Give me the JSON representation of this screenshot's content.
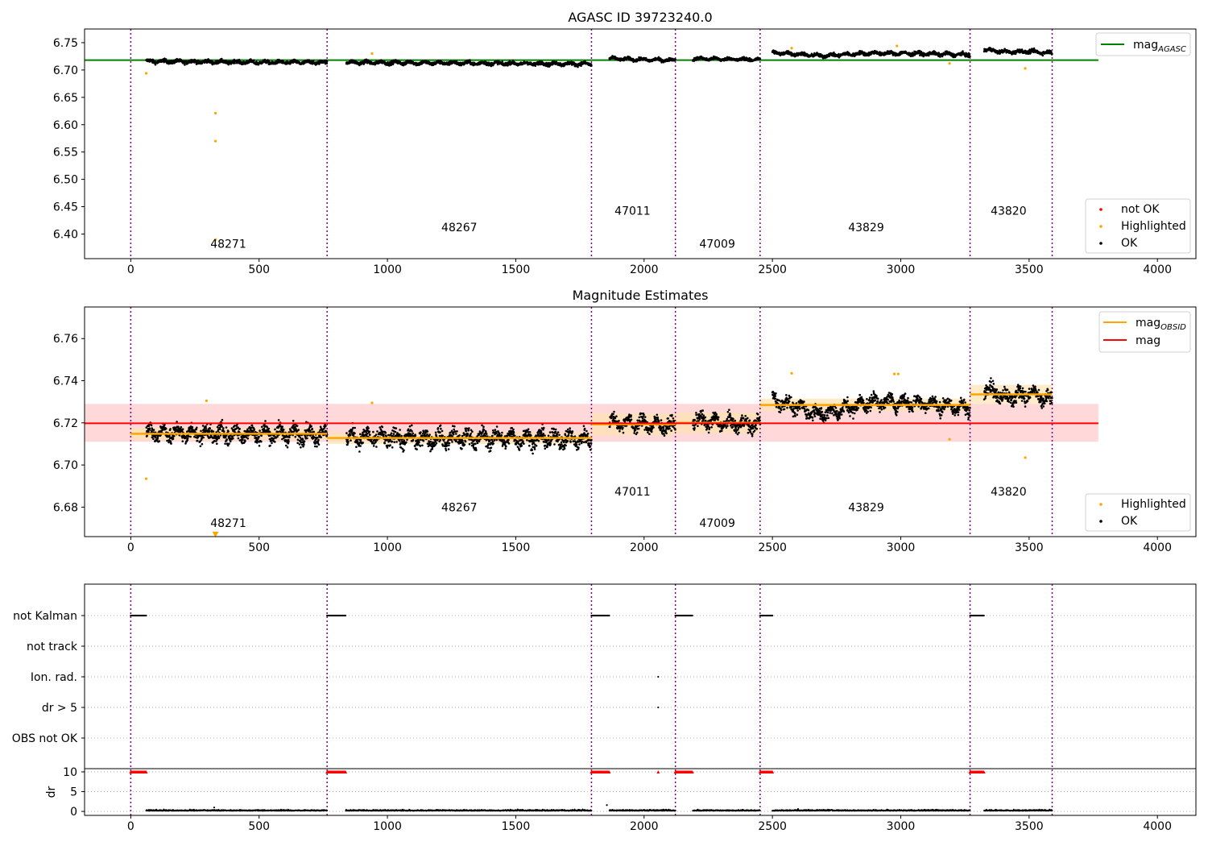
{
  "colors": {
    "ok": "#000000",
    "highlighted": "#ffa500",
    "not_ok": "#ff0000",
    "agasc_line": "#008000",
    "obs_sep": "#800080",
    "mag_line": "#ff0000",
    "mag_band": "#ffcccc",
    "obsid_band": "#ffe3b0"
  },
  "chart_data": [
    {
      "type": "scatter",
      "title": "AGASC ID 39723240.0",
      "xlim": [
        -180,
        4150
      ],
      "ylim": [
        6.355,
        6.775
      ],
      "xticks": [
        0,
        500,
        1000,
        1500,
        2000,
        2500,
        3000,
        3500,
        4000
      ],
      "yticks": [
        6.4,
        6.45,
        6.5,
        6.55,
        6.6,
        6.65,
        6.7,
        6.75
      ],
      "ytick_labels": [
        "6.40",
        "6.45",
        "6.50",
        "6.55",
        "6.60",
        "6.65",
        "6.70",
        "6.75"
      ],
      "grid": false,
      "obs_boundaries": [
        0,
        765,
        1795,
        2122,
        2452,
        3270,
        3590
      ],
      "obsids": [
        {
          "label": "48271",
          "x": 380,
          "y": 6.375
        },
        {
          "label": "48267",
          "x": 1280,
          "y": 6.405
        },
        {
          "label": "47011",
          "x": 1955,
          "y": 6.435
        },
        {
          "label": "47009",
          "x": 2285,
          "y": 6.375
        },
        {
          "label": "43829",
          "x": 2865,
          "y": 6.405
        },
        {
          "label": "43820",
          "x": 3420,
          "y": 6.435
        }
      ],
      "series": [
        {
          "name": "mag_AGASC",
          "kind": "hline",
          "y": 6.718,
          "x_range": [
            -180,
            3770
          ]
        },
        {
          "name": "not OK",
          "kind": "points",
          "points": []
        },
        {
          "name": "Highlighted",
          "kind": "points",
          "points": [
            [
              60,
              6.694
            ],
            [
              330,
              6.621
            ],
            [
              330,
              6.57
            ],
            [
              330,
              6.39
            ],
            [
              940,
              6.73
            ],
            [
              2575,
              6.74
            ],
            [
              2985,
              6.744
            ],
            [
              3190,
              6.712
            ],
            [
              3485,
              6.703
            ]
          ]
        },
        {
          "name": "OK",
          "kind": "dense",
          "segments": [
            {
              "x": [
                60,
                765
              ],
              "means": [
                6.716,
                6.715,
                6.714,
                6.714
              ],
              "spread": 0.004
            },
            {
              "x": [
                840,
                1795
              ],
              "means": [
                6.714,
                6.713,
                6.712,
                6.711
              ],
              "spread": 0.004
            },
            {
              "x": [
                1865,
                2122
              ],
              "means": [
                6.721,
                6.719,
                6.718
              ],
              "spread": 0.0035
            },
            {
              "x": [
                2190,
                2452
              ],
              "means": [
                6.721,
                6.72,
                6.719
              ],
              "spread": 0.0035
            },
            {
              "x": [
                2500,
                3270
              ],
              "means": [
                6.732,
                6.726,
                6.731,
                6.73,
                6.728
              ],
              "spread": 0.004
            },
            {
              "x": [
                3325,
                3590
              ],
              "means": [
                6.737,
                6.733,
                6.734,
                6.731
              ],
              "spread": 0.004
            }
          ]
        }
      ],
      "legend_top": {
        "position": "top-right",
        "entries": [
          {
            "label": "mag",
            "sub": "AGASC"
          }
        ]
      },
      "legend_bottom": {
        "position": "bottom-right",
        "entries": [
          "not OK",
          "Highlighted",
          "OK"
        ]
      }
    },
    {
      "type": "scatter",
      "title": "Magnitude Estimates",
      "xlim": [
        -180,
        4150
      ],
      "ylim": [
        6.666,
        6.775
      ],
      "xticks": [
        0,
        500,
        1000,
        1500,
        2000,
        2500,
        3000,
        3500,
        4000
      ],
      "yticks": [
        6.68,
        6.7,
        6.72,
        6.74,
        6.76
      ],
      "ytick_labels": [
        "6.68",
        "6.70",
        "6.72",
        "6.74",
        "6.76"
      ],
      "grid": false,
      "obs_boundaries": [
        0,
        765,
        1795,
        2122,
        2452,
        3270,
        3590
      ],
      "obsids": [
        {
          "label": "48271",
          "x": 380,
          "y": 6.6705
        },
        {
          "label": "48267",
          "x": 1280,
          "y": 6.678
        },
        {
          "label": "47011",
          "x": 1955,
          "y": 6.6855
        },
        {
          "label": "47009",
          "x": 2285,
          "y": 6.6705
        },
        {
          "label": "43829",
          "x": 2865,
          "y": 6.678
        },
        {
          "label": "43820",
          "x": 3420,
          "y": 6.6855
        }
      ],
      "mag_band": {
        "x": [
          -180,
          3770
        ],
        "low": 6.711,
        "high": 6.729
      },
      "obsid_mags": [
        {
          "x": [
            0,
            765
          ],
          "mag": 6.7148,
          "low": 6.712,
          "high": 6.7175
        },
        {
          "x": [
            765,
            1795
          ],
          "mag": 6.7128,
          "low": 6.71,
          "high": 6.7155
        },
        {
          "x": [
            1795,
            2122
          ],
          "mag": 6.7193,
          "low": 6.714,
          "high": 6.7245
        },
        {
          "x": [
            2122,
            2452
          ],
          "mag": 6.72,
          "low": 6.715,
          "high": 6.725
        },
        {
          "x": [
            2452,
            3270
          ],
          "mag": 6.7285,
          "low": 6.7255,
          "high": 6.7315
        },
        {
          "x": [
            3270,
            3590
          ],
          "mag": 6.7335,
          "low": 6.729,
          "high": 6.738
        }
      ],
      "series": [
        {
          "name": "mag",
          "kind": "hline",
          "y": 6.7198,
          "x_range": [
            -180,
            3770
          ]
        },
        {
          "name": "Highlighted",
          "kind": "points",
          "points": [
            [
              60,
              6.6935
            ],
            [
              295,
              6.7305
            ],
            [
              940,
              6.7295
            ],
            [
              2575,
              6.7435
            ],
            [
              2975,
              6.7432
            ],
            [
              2990,
              6.7432
            ],
            [
              3190,
              6.7122
            ],
            [
              3485,
              6.7035
            ]
          ]
        },
        {
          "name": "Highlighted-marker",
          "kind": "triangle",
          "points": [
            [
              330,
              6.6668
            ]
          ]
        },
        {
          "name": "OK",
          "kind": "dense",
          "segments": [
            {
              "x": [
                60,
                765
              ],
              "means": [
                6.7155,
                6.7148,
                6.715,
                6.7145
              ],
              "spread": 0.0048
            },
            {
              "x": [
                840,
                1795
              ],
              "means": [
                6.7132,
                6.7125,
                6.7128,
                6.7122
              ],
              "spread": 0.0048
            },
            {
              "x": [
                1865,
                2122
              ],
              "means": [
                6.7205,
                6.7195,
                6.7182
              ],
              "spread": 0.0042
            },
            {
              "x": [
                2190,
                2452
              ],
              "means": [
                6.7215,
                6.7198,
                6.719
              ],
              "spread": 0.0042
            },
            {
              "x": [
                2500,
                3270
              ],
              "means": [
                6.731,
                6.724,
                6.73,
                6.7295,
                6.7265
              ],
              "spread": 0.0042
            },
            {
              "x": [
                3325,
                3590
              ],
              "means": [
                6.737,
                6.732,
                6.734,
                6.73
              ],
              "spread": 0.0045
            }
          ]
        }
      ],
      "legend_top": {
        "position": "top-right",
        "entries": [
          {
            "label": "mag",
            "sub": "OBSID"
          },
          {
            "label": "mag",
            "sub": ""
          }
        ]
      },
      "legend_bottom": {
        "position": "bottom-right",
        "entries": [
          "Highlighted",
          "OK"
        ]
      }
    },
    {
      "type": "scatter",
      "title": "",
      "xlim": [
        -180,
        4150
      ],
      "xticks": [
        0,
        500,
        1000,
        1500,
        2000,
        2500,
        3000,
        3500,
        4000
      ],
      "flag_labels": [
        "not Kalman",
        "not track",
        "Ion. rad.",
        "dr > 5",
        "OBS not OK"
      ],
      "obs_boundaries": [
        0,
        765,
        1795,
        2122,
        2452,
        3270,
        3590
      ],
      "flag_segments": {
        "not Kalman": [
          [
            0,
            60
          ],
          [
            765,
            838
          ],
          [
            1795,
            1865
          ],
          [
            2122,
            2190
          ],
          [
            2452,
            2500
          ],
          [
            3270,
            3325
          ]
        ],
        "not track": [],
        "Ion. rad.": [
          [
            2055,
            2055
          ]
        ],
        "dr > 5": [
          [
            2055,
            2055
          ]
        ],
        "OBS not OK": []
      },
      "dr": {
        "ylabel": "dr",
        "ylim": [
          -1,
          10.2
        ],
        "yticks": [
          0,
          5,
          10
        ],
        "capped_segments": [
          [
            0,
            60
          ],
          [
            765,
            838
          ],
          [
            1795,
            1865
          ],
          [
            2122,
            2190
          ],
          [
            2452,
            2500
          ],
          [
            3270,
            3325
          ]
        ],
        "capped_points": [
          2055
        ],
        "extra_points": [
          [
            325,
            1.0
          ],
          [
            1855,
            1.6
          ],
          [
            2600,
            0.6
          ]
        ],
        "baseline_segments": [
          [
            60,
            765
          ],
          [
            838,
            1795
          ],
          [
            1865,
            2122
          ],
          [
            2190,
            2452
          ],
          [
            2500,
            3270
          ],
          [
            3325,
            3590
          ]
        ]
      }
    }
  ]
}
